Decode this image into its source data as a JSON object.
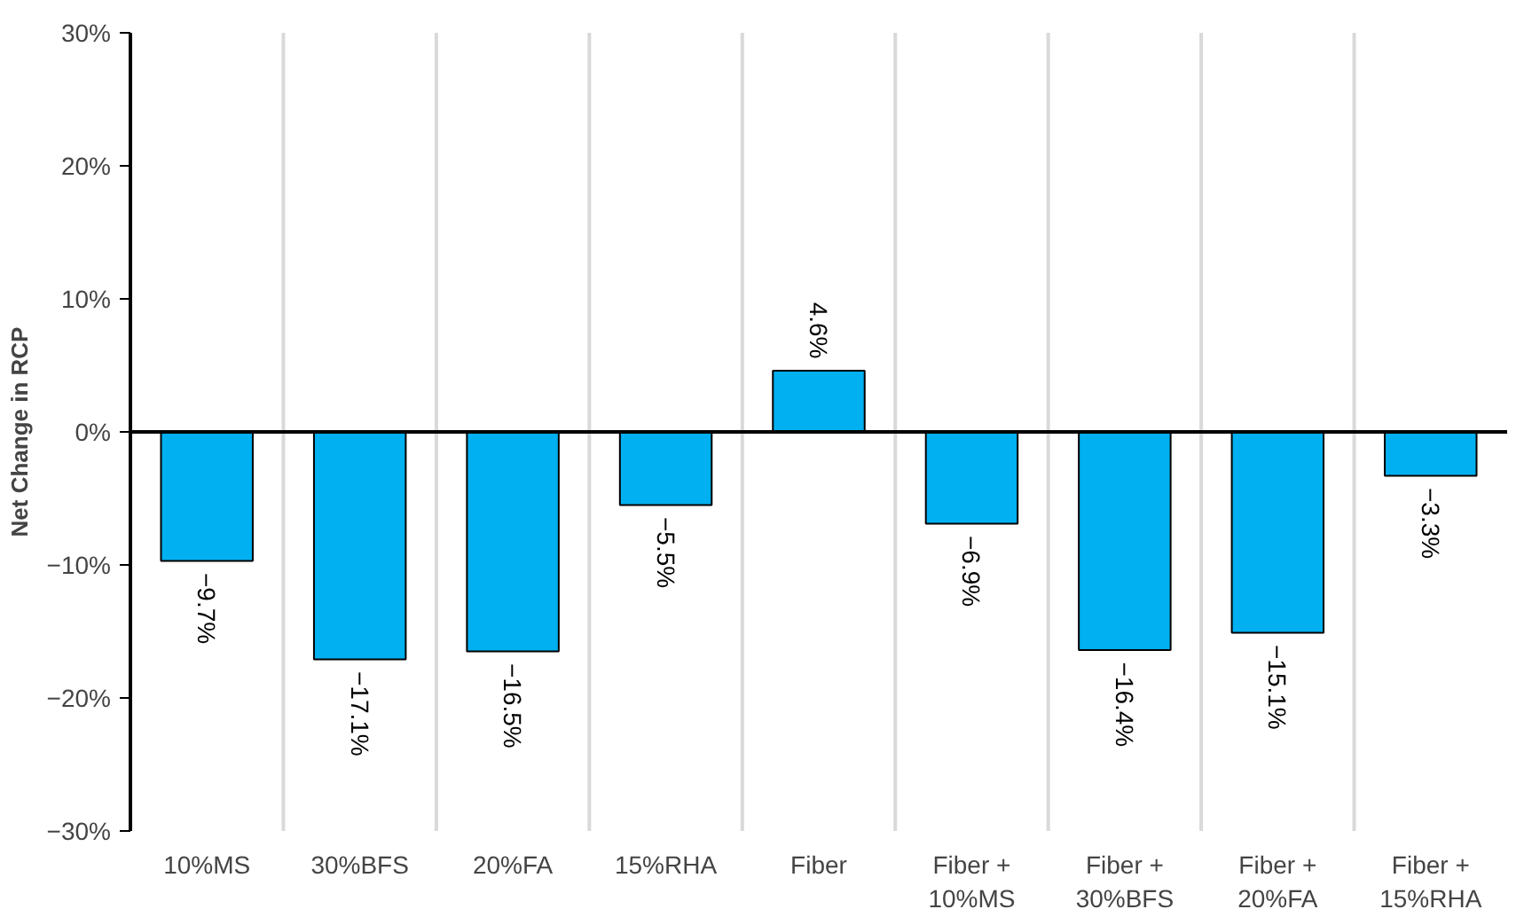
{
  "chart_data": {
    "type": "bar",
    "ylabel": "Net Change in RCP",
    "categories": [
      "10%MS",
      "30%BFS",
      "20%FA",
      "15%RHA",
      "Fiber",
      "Fiber +\n10%MS",
      "Fiber +\n30%BFS",
      "Fiber +\n20%FA",
      "Fiber +\n15%RHA"
    ],
    "values": [
      -9.7,
      -17.1,
      -16.5,
      -5.5,
      4.6,
      -6.9,
      -16.4,
      -15.1,
      -3.3
    ],
    "value_labels": [
      "−9.7%",
      "−17.1%",
      "−16.5%",
      "−5.5%",
      "4.6%",
      "−6.9%",
      "−16.4%",
      "−15.1%",
      "−3.3%"
    ],
    "color": "#00b0f0",
    "ylim": [
      -30,
      30
    ],
    "yticks": [
      {
        "value": -30,
        "label": "−30%"
      },
      {
        "value": -20,
        "label": "−20%"
      },
      {
        "value": -10,
        "label": "−10%"
      },
      {
        "value": 0,
        "label": "0%"
      },
      {
        "value": 10,
        "label": "10%"
      },
      {
        "value": 20,
        "label": "20%"
      },
      {
        "value": 30,
        "label": "30%"
      }
    ],
    "grid": "x"
  }
}
